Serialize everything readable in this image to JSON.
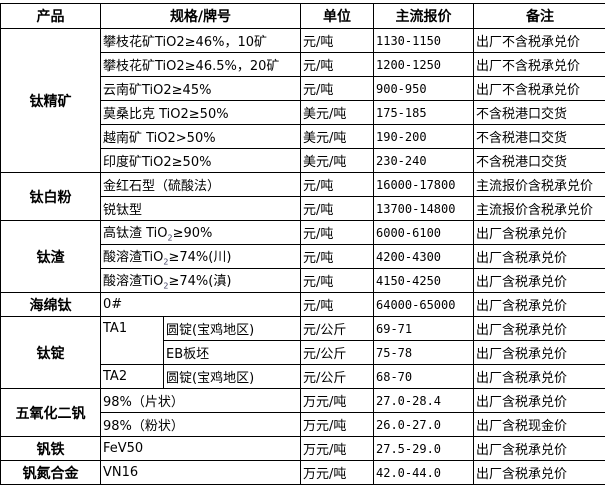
{
  "header": [
    "产品",
    "规格/牌号",
    "单位",
    "主流报价",
    "备注"
  ],
  "groups": [
    {
      "product": "钛精矿",
      "rows": [
        {
          "spec": "攀枝花矿TiO2≥46%，10矿",
          "unit": "元/吨",
          "price": "1130-1150",
          "note": "出厂不含税承兑价"
        },
        {
          "spec": "攀枝花矿TiO2≥46.5%，20矿",
          "unit": "元/吨",
          "price": "1200-1250",
          "note": "出厂不含税承兑价"
        },
        {
          "spec": "云南矿TiO2≥45%",
          "unit": "元/吨",
          "price": "900-950",
          "note": "出厂不含税承兑价"
        },
        {
          "spec": "莫桑比克 TiO2≥50%",
          "unit": "美元/吨",
          "price": "175-185",
          "note": "不含税港口交货"
        },
        {
          "spec": "越南矿 TiO2>50%",
          "unit": "美元/吨",
          "price": "190-200",
          "note": "不含税港口交货"
        },
        {
          "spec": "印度矿TiO2≥50%",
          "unit": "美元/吨",
          "price": "230-240",
          "note": "不含税港口交货"
        }
      ]
    },
    {
      "product": "钛白粉",
      "rows": [
        {
          "spec": "金红石型（硫酸法）",
          "unit": "元/吨",
          "price": "16000-17800",
          "note": "主流报价含税承兑价"
        },
        {
          "spec": "锐钛型",
          "unit": "元/吨",
          "price": "13700-14800",
          "note": "主流报价含税承兑价"
        }
      ]
    },
    {
      "product": "钛渣",
      "rows": [
        {
          "spec": "高钛渣 TiO",
          "spec_sub": "2",
          "spec_post": "≥90%",
          "unit": "元/吨",
          "price": "6000-6100",
          "note": "出厂含税承兑价"
        },
        {
          "spec": "酸溶渣TiO",
          "spec_sub": "2",
          "spec_post": "≥74%(川)",
          "unit": "元/吨",
          "price": "4200-4300",
          "note": "出厂含税承兑价"
        },
        {
          "spec": "酸溶渣TiO",
          "spec_sub": "2",
          "spec_post": "≥74%(滇)",
          "unit": "元/吨",
          "price": "4150-4250",
          "note": "出厂含税承兑价"
        }
      ]
    },
    {
      "product": "海绵钛",
      "rows": [
        {
          "spec": "0#",
          "unit": "元/吨",
          "price": "64000-65000",
          "note": "出厂含税承兑价"
        }
      ]
    },
    {
      "product": "钛锭",
      "rows": [
        {
          "grade": "TA1",
          "grade_span": 2,
          "spec": "圆锭(宝鸡地区)",
          "unit": "元/公斤",
          "price": "69-71",
          "note": "出厂含税承兑价"
        },
        {
          "spec": "EB板坯",
          "unit": "元/公斤",
          "price": "75-78",
          "note": "出厂含税承兑价"
        },
        {
          "grade": "TA2",
          "grade_span": 1,
          "spec": "圆锭(宝鸡地区)",
          "unit": "元/公斤",
          "price": "68-70",
          "note": "出厂含税承兑价"
        }
      ]
    },
    {
      "product": "五氧化二钒",
      "rows": [
        {
          "spec": "98%（片状）",
          "unit": "万元/吨",
          "price": "27.0-28.4",
          "note": "出厂含税承兑价"
        },
        {
          "spec": "98%（粉状）",
          "unit": "万元/吨",
          "price": "26.0-27.0",
          "note": "出厂含税现金价"
        }
      ]
    },
    {
      "product": "钒铁",
      "rows": [
        {
          "spec": "FeV50",
          "unit": "万元/吨",
          "price": "27.5-29.0",
          "note": "出厂含税承兑价"
        }
      ]
    },
    {
      "product": "钒氮合金",
      "rows": [
        {
          "spec": "VN16",
          "unit": "万元/吨",
          "price": "42.0-44.0",
          "note": "出厂含税承兑价"
        }
      ]
    }
  ]
}
